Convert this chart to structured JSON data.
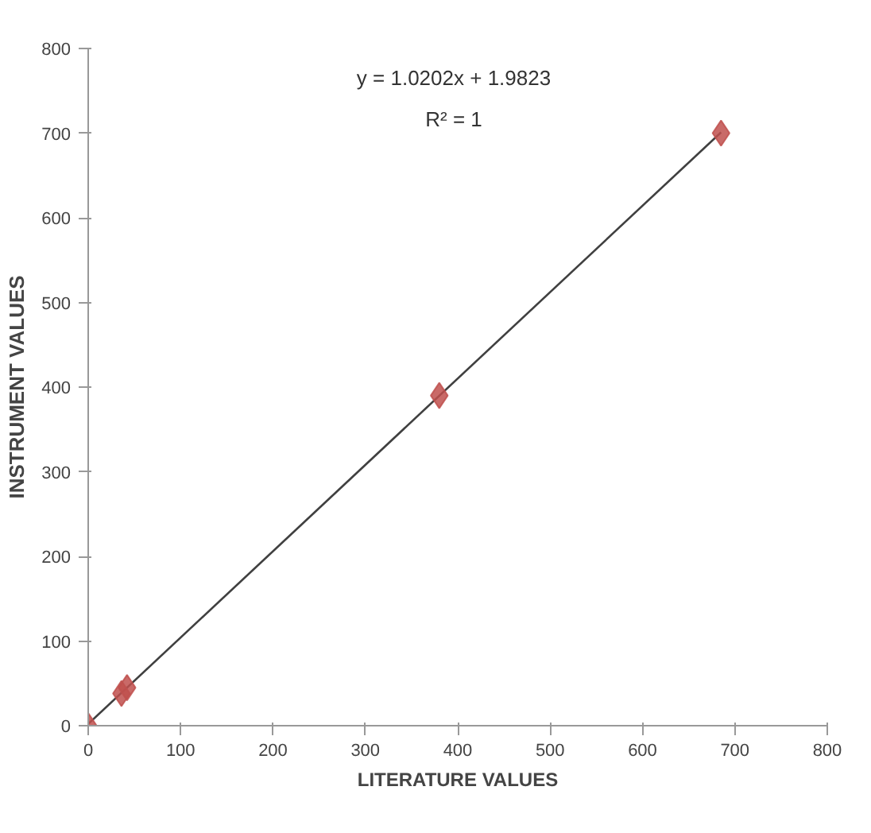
{
  "chart_data": {
    "type": "scatter",
    "xlabel": "LITERATURE VALUES",
    "ylabel": "INSTRUMENT VALUES",
    "xlim": [
      0,
      800
    ],
    "ylim": [
      0,
      800
    ],
    "xticks": [
      0,
      100,
      200,
      300,
      400,
      500,
      600,
      700,
      800
    ],
    "yticks": [
      0,
      100,
      200,
      300,
      400,
      500,
      600,
      700,
      800
    ],
    "grid": false,
    "series": [
      {
        "color": "#c0504d",
        "marker": "diamond",
        "x": [
          0,
          36,
          42,
          380,
          685
        ],
        "values": [
          0,
          38,
          45,
          390,
          700
        ]
      },
      {
        "type": "line",
        "color": "#404040",
        "x": [
          0,
          685
        ],
        "values": [
          2,
          701
        ]
      }
    ],
    "annotations": [
      "y = 1.0202x + 1.9823",
      "R² = 1"
    ]
  }
}
